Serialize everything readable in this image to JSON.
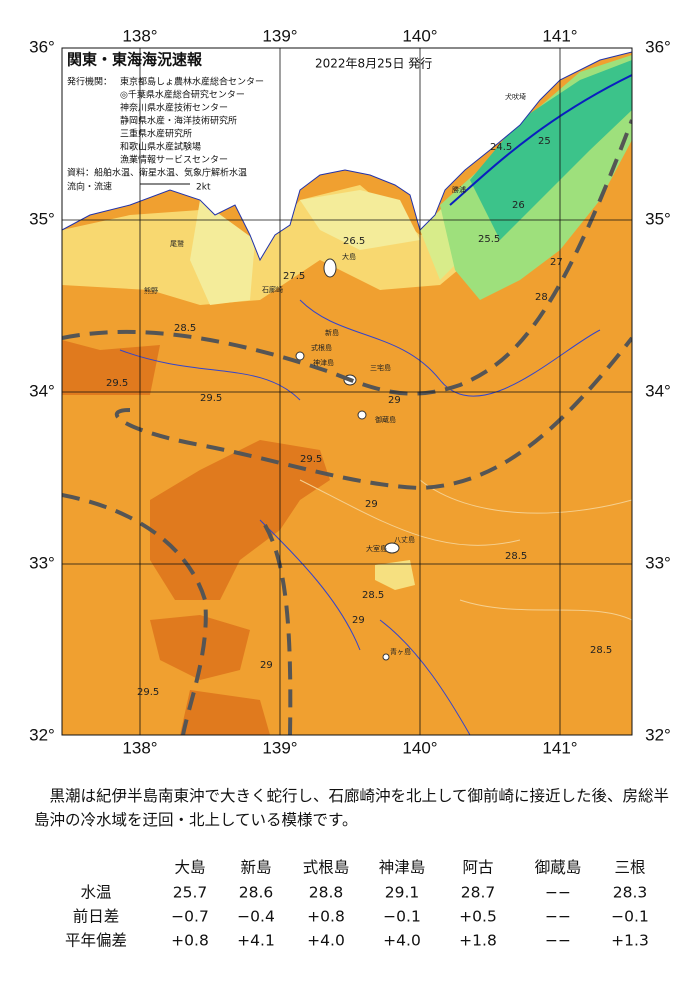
{
  "header": {
    "title": "関東・東海海況速報",
    "date": "2022年8月25日 発行",
    "issuer_label": "発行機関：",
    "issuers": [
      "東京都島しょ農林水産総合センター",
      "◎千葉県水産総合研究センター",
      "神奈川県水産技術センター",
      "静岡県水産・海洋技術研究所",
      "三重県水産研究所",
      "和歌山県水産試験場",
      "漁業情報サービスセンター"
    ],
    "materials": "資料：船舶水温、衛星水温、気象庁解析水温",
    "legend_label": "流向・流速",
    "legend_scale": "2kt"
  },
  "map": {
    "lon_ticks": [
      {
        "value": 138,
        "label": "138°"
      },
      {
        "value": 139,
        "label": "139°"
      },
      {
        "value": 140,
        "label": "140°"
      },
      {
        "value": 141,
        "label": "141°"
      }
    ],
    "lat_ticks": [
      {
        "value": 36,
        "label": "36°"
      },
      {
        "value": 35,
        "label": "35°"
      },
      {
        "value": 34,
        "label": "34°"
      },
      {
        "value": 33,
        "label": "33°"
      },
      {
        "value": 32,
        "label": "32°"
      }
    ],
    "place_labels": [
      "大島",
      "新島",
      "式根島",
      "神津島",
      "三宅島",
      "御蔵島",
      "八丈島",
      "青ヶ島",
      "大室島",
      "勝浦",
      "犬吠埼",
      "尾鷲",
      "熊野",
      "石廊崎"
    ],
    "isotherm_labels": [
      "24.5",
      "25",
      "25.5",
      "26",
      "26.5",
      "27",
      "27.5",
      "28",
      "28.5",
      "29",
      "29.5",
      "29.5",
      "29",
      "28.5",
      "29.5",
      "29",
      "28.5",
      "29.5",
      "28.5",
      "29"
    ]
  },
  "description": "黒潮は紀伊半島南東沖で大きく蛇行し、石廊崎沖を北上して御前崎に接近した後、房総半島沖の冷水域を迂回・北上している模様です。",
  "table": {
    "columns": [
      "大島",
      "新島",
      "式根島",
      "神津島",
      "阿古",
      "御蔵島",
      "三根"
    ],
    "rows": [
      {
        "label": "水温",
        "cells": [
          "25.7",
          "28.6",
          "28.8",
          "29.1",
          "28.7",
          "−−",
          "28.3"
        ]
      },
      {
        "label": "前日差",
        "cells": [
          "−0.7",
          "−0.4",
          "+0.8",
          "−0.1",
          "+0.5",
          "−−",
          "−0.1"
        ]
      },
      {
        "label": "平年偏差",
        "cells": [
          "+0.8",
          "+4.1",
          "+4.0",
          "+4.0",
          "+1.8",
          "−−",
          "+1.3"
        ]
      }
    ]
  }
}
